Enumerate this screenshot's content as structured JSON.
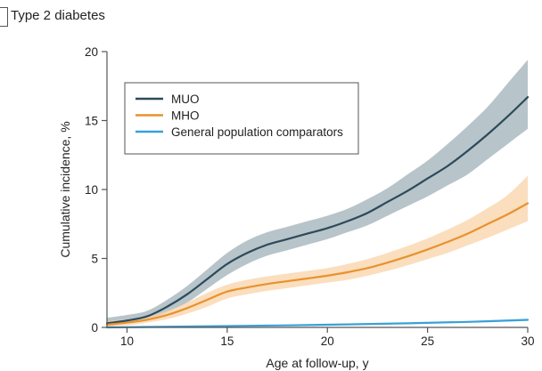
{
  "panel": {
    "title": "Type 2 diabetes"
  },
  "chart_data": {
    "type": "line",
    "title": "Type 2 diabetes",
    "xlabel": "Age at follow-up, y",
    "ylabel": "Cumulative incidence, %",
    "xlim": [
      9,
      30
    ],
    "ylim": [
      0,
      20
    ],
    "xticks": [
      10,
      15,
      20,
      25,
      30
    ],
    "yticks": [
      0,
      5,
      10,
      15,
      20
    ],
    "grid": false,
    "legend_position": "top-left",
    "series": [
      {
        "name": "MUO",
        "color": "#2d4a5a",
        "band_color": "#9fb0b8",
        "x": [
          9,
          10,
          11,
          12,
          13,
          14,
          15,
          16,
          17,
          18,
          19,
          20,
          21,
          22,
          23,
          24,
          25,
          26,
          27,
          28,
          29,
          30
        ],
        "y": [
          0.3,
          0.5,
          0.8,
          1.5,
          2.4,
          3.5,
          4.6,
          5.4,
          6.0,
          6.4,
          6.8,
          7.2,
          7.7,
          8.3,
          9.1,
          9.9,
          10.8,
          11.7,
          12.8,
          14.0,
          15.3,
          16.7
        ],
        "lower": [
          0.1,
          0.3,
          0.5,
          1.1,
          1.8,
          2.8,
          3.8,
          4.6,
          5.2,
          5.6,
          6.0,
          6.4,
          6.9,
          7.4,
          8.1,
          8.8,
          9.5,
          10.3,
          11.1,
          12.2,
          13.3,
          14.4
        ],
        "upper": [
          0.7,
          0.9,
          1.2,
          2.0,
          3.0,
          4.2,
          5.4,
          6.3,
          6.9,
          7.3,
          7.7,
          8.1,
          8.6,
          9.3,
          10.1,
          11.1,
          12.1,
          13.3,
          14.6,
          16.0,
          17.7,
          19.4
        ]
      },
      {
        "name": "MHO",
        "color": "#e8922e",
        "band_color": "#f8d3a8",
        "x": [
          9,
          10,
          11,
          12,
          13,
          14,
          15,
          16,
          17,
          18,
          19,
          20,
          21,
          22,
          23,
          24,
          25,
          26,
          27,
          28,
          29,
          30
        ],
        "y": [
          0.2,
          0.35,
          0.55,
          0.9,
          1.4,
          2.0,
          2.6,
          2.9,
          3.15,
          3.35,
          3.55,
          3.75,
          4.0,
          4.3,
          4.7,
          5.15,
          5.65,
          6.2,
          6.8,
          7.5,
          8.2,
          9.0
        ],
        "lower": [
          0.05,
          0.15,
          0.35,
          0.6,
          1.0,
          1.5,
          2.1,
          2.4,
          2.65,
          2.85,
          3.05,
          3.25,
          3.45,
          3.75,
          4.1,
          4.5,
          4.95,
          5.4,
          5.95,
          6.5,
          7.1,
          7.7
        ],
        "upper": [
          0.45,
          0.6,
          0.8,
          1.2,
          1.8,
          2.5,
          3.1,
          3.45,
          3.7,
          3.9,
          4.1,
          4.3,
          4.6,
          4.95,
          5.4,
          5.9,
          6.45,
          7.1,
          7.8,
          8.65,
          9.6,
          11.0
        ]
      },
      {
        "name": "General population comparators",
        "color": "#3aa0d8",
        "band_color": "#bfe0f3",
        "x": [
          9,
          12,
          15,
          18,
          21,
          24,
          27,
          30
        ],
        "y": [
          0.0,
          0.05,
          0.1,
          0.15,
          0.22,
          0.3,
          0.4,
          0.55
        ],
        "lower": [
          0.0,
          0.03,
          0.07,
          0.12,
          0.18,
          0.25,
          0.34,
          0.47
        ],
        "upper": [
          0.02,
          0.07,
          0.13,
          0.19,
          0.26,
          0.35,
          0.46,
          0.63
        ]
      }
    ]
  }
}
